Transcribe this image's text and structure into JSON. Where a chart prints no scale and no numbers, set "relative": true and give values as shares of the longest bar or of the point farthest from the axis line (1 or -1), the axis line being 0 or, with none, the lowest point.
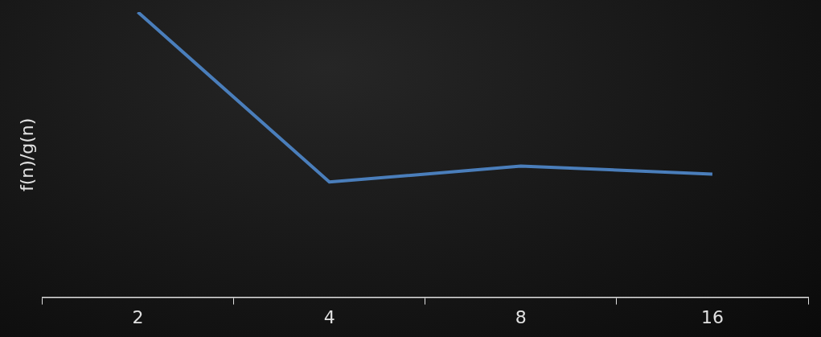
{
  "chart_data": {
    "type": "line",
    "ylabel": "f(n)/g(n)",
    "categories": [
      "2",
      "4",
      "8",
      "16"
    ],
    "relative": true,
    "marker": "none",
    "series": [
      {
        "color": "#4a7ebb",
        "values": [
          1,
          0.404,
          0.46,
          0.432
        ]
      }
    ]
  }
}
